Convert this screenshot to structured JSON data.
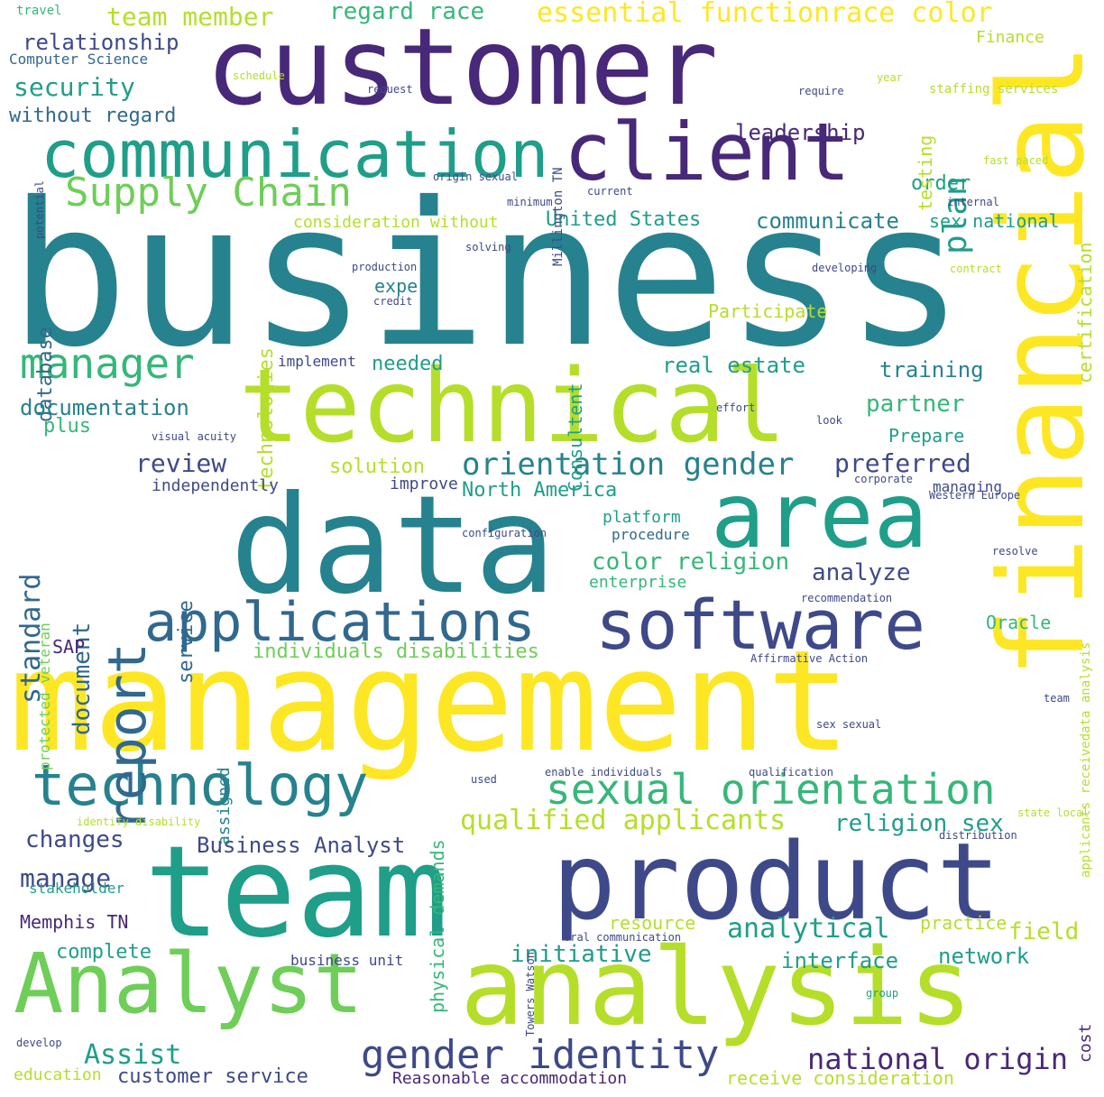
{
  "palette": {
    "yellow": "#fde725",
    "lime": "#b5de2b",
    "green": "#6ece58",
    "teal_green": "#35b779",
    "teal": "#1f9e89",
    "blue_teal": "#26828e",
    "steel": "#31688e",
    "indigo": "#3e4989",
    "purple": "#482878",
    "deep": "#440154",
    "background": "#ffffff"
  },
  "words": {
    "business": "business",
    "management": "management",
    "customer": "customer",
    "data": "data",
    "technical": "technical",
    "product": "product",
    "team": "team",
    "analysis": "analysis",
    "Analyst": "Analyst",
    "financial": "financial",
    "client": "client",
    "communication": "communication",
    "software": "software",
    "area": "area",
    "applications": "applications",
    "technology": "technology",
    "report": "report",
    "sexual_orientation": "sexual orientation",
    "gender_identity": "gender identity",
    "national_origin": "national origin",
    "Supply_Chain": "Supply Chain",
    "manager": "manager",
    "orientation_gender": "orientation gender",
    "essential_functionrace_color": "essential functionrace color",
    "team_member": "team member",
    "regard_race": "regard race",
    "relationship": "relationship",
    "security": "security",
    "without_regard": "without regard",
    "Computer_Science": "Computer Science",
    "leadership": "leadership",
    "plan": "plan",
    "order": "order",
    "testing": "testing",
    "certification": "certification",
    "Finance": "Finance",
    "staffing_services": "staffing services",
    "consideration_without": "consideration without",
    "United_States": "United States",
    "communicate": "communicate",
    "sex_national": "sex national",
    "database": "database",
    "technologies": "technologies",
    "expert": "expert",
    "Consultent": "Consultent",
    "Participate": "Participate",
    "needed": "needed",
    "real_estate": "real estate",
    "training": "training",
    "partner": "partner",
    "Prepare": "Prepare",
    "documentation": "documentation",
    "plus": "plus",
    "review": "review",
    "solution": "solution",
    "preferred": "preferred",
    "independently": "independently",
    "improve": "improve",
    "North_America": "North America",
    "managing": "managing",
    "standard": "standard",
    "document": "document",
    "service": "service",
    "platform": "platform",
    "procedure": "procedure",
    "color_religion": "color religion",
    "analyze": "analyze",
    "enterprise": "enterprise",
    "Oracle": "Oracle",
    "SAP": "SAP",
    "individuals_disabilities": "individuals disabilities",
    "qualified_applicants": "qualified applicants",
    "religion_sex": "religion sex",
    "changes": "changes",
    "Business_Analyst": "Business Analyst",
    "manage": "manage",
    "Memphis_TN": "Memphis TN",
    "complete": "complete",
    "business_unit": "business unit",
    "initiative": "initiative",
    "interface": "interface",
    "network": "network",
    "resource": "resource",
    "analytical": "analytical",
    "practice": "practice",
    "field": "field",
    "Assist": "Assist",
    "customer_service": "customer service",
    "education": "education",
    "Reasonable_accommodation": "Reasonable accommodation",
    "receive_consideration": "receive consideration",
    "cost": "cost",
    "physical_demands": "physical demands",
    "assigned": "assigned",
    "protected_veteran": "protected veteran",
    "applicants_receivedata_analysis": "applicants receivedata analysis",
    "travel": "travel",
    "implement": "implement",
    "request": "request",
    "developing": "developing",
    "credit": "credit",
    "production": "production",
    "Millington_TN": "Millington TN",
    "origin_sexual": "origin sexual",
    "visual_acuity": "visual acuity",
    "stakeholder": "stakeholder",
    "Towers_Watson": "Towers Watson",
    "used": "used",
    "enable_individuals": "enable individuals",
    "qualification": "qualification",
    "state_local": "state local",
    "distribution": "distribution",
    "corporate": "corporate",
    "Western_Europe": "Western Europe",
    "resolve": "resolve",
    "configuration": "configuration",
    "recommendation": "recommendation",
    "Affirmative_Action": "Affirmative Action",
    "sex_sexual": "sex sexual",
    "identify_disability": "identify disability",
    "oral_communication": "oral communication",
    "group": "group",
    "develop": "develop",
    "look": "look",
    "effort": "effort",
    "minimum": "minimum",
    "current": "current",
    "year": "year",
    "require": "require",
    "solving": "solving",
    "internal": "internal",
    "contract": "contract",
    "team_small": "team",
    "fast_paced": "fast paced",
    "potential": "potential",
    "schedule": "schedule"
  }
}
